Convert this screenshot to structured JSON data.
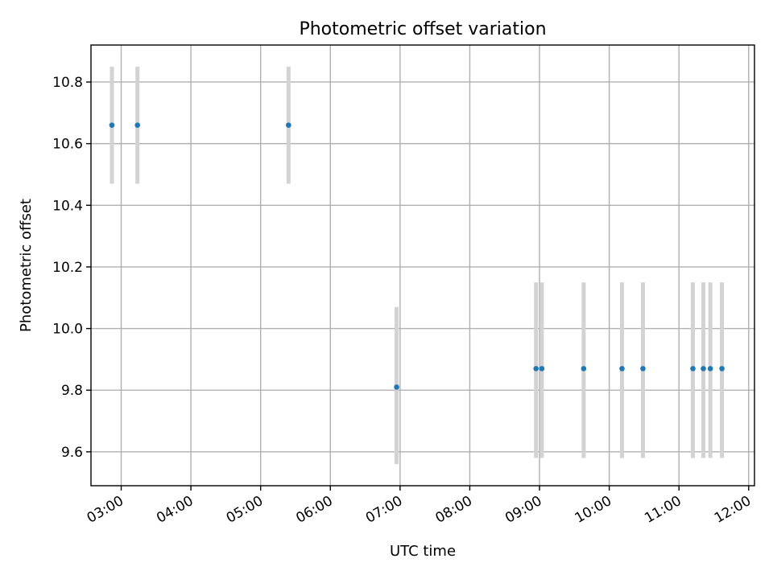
{
  "chart_data": {
    "type": "scatter",
    "title": "Photometric offset variation",
    "xlabel": "UTC time",
    "ylabel": "Photometric offset",
    "xlim": [
      "02:34",
      "12:05"
    ],
    "ylim": [
      9.49,
      10.92
    ],
    "grid": true,
    "x_ticks": [
      "03:00",
      "04:00",
      "05:00",
      "06:00",
      "07:00",
      "08:00",
      "09:00",
      "10:00",
      "11:00",
      "12:00"
    ],
    "y_ticks": [
      9.6,
      9.8,
      10.0,
      10.2,
      10.4,
      10.6,
      10.8
    ],
    "y_tick_labels": [
      "9.6",
      "9.8",
      "10.0",
      "10.2",
      "10.4",
      "10.6",
      "10.8"
    ],
    "series": [
      {
        "points": [
          {
            "x": "02:52",
            "y": 10.66,
            "err_low": 10.47,
            "err_high": 10.85
          },
          {
            "x": "03:14",
            "y": 10.66,
            "err_low": 10.47,
            "err_high": 10.85
          },
          {
            "x": "05:24",
            "y": 10.66,
            "err_low": 10.47,
            "err_high": 10.85
          },
          {
            "x": "06:57",
            "y": 9.81,
            "err_low": 9.56,
            "err_high": 10.07
          },
          {
            "x": "08:57",
            "y": 9.87,
            "err_low": 9.58,
            "err_high": 10.15
          },
          {
            "x": "09:02",
            "y": 9.87,
            "err_low": 9.58,
            "err_high": 10.15
          },
          {
            "x": "09:38",
            "y": 9.87,
            "err_low": 9.58,
            "err_high": 10.15
          },
          {
            "x": "10:11",
            "y": 9.87,
            "err_low": 9.58,
            "err_high": 10.15
          },
          {
            "x": "10:29",
            "y": 9.87,
            "err_low": 9.58,
            "err_high": 10.15
          },
          {
            "x": "11:12",
            "y": 9.87,
            "err_low": 9.58,
            "err_high": 10.15
          },
          {
            "x": "11:21",
            "y": 9.87,
            "err_low": 9.58,
            "err_high": 10.15
          },
          {
            "x": "11:27",
            "y": 9.87,
            "err_low": 9.58,
            "err_high": 10.15
          },
          {
            "x": "11:37",
            "y": 9.87,
            "err_low": 9.58,
            "err_high": 10.15
          }
        ]
      }
    ],
    "colors": {
      "point": "#1f77b4",
      "errorbar": "#d3d3d3",
      "grid": "#b0b0b0"
    }
  }
}
